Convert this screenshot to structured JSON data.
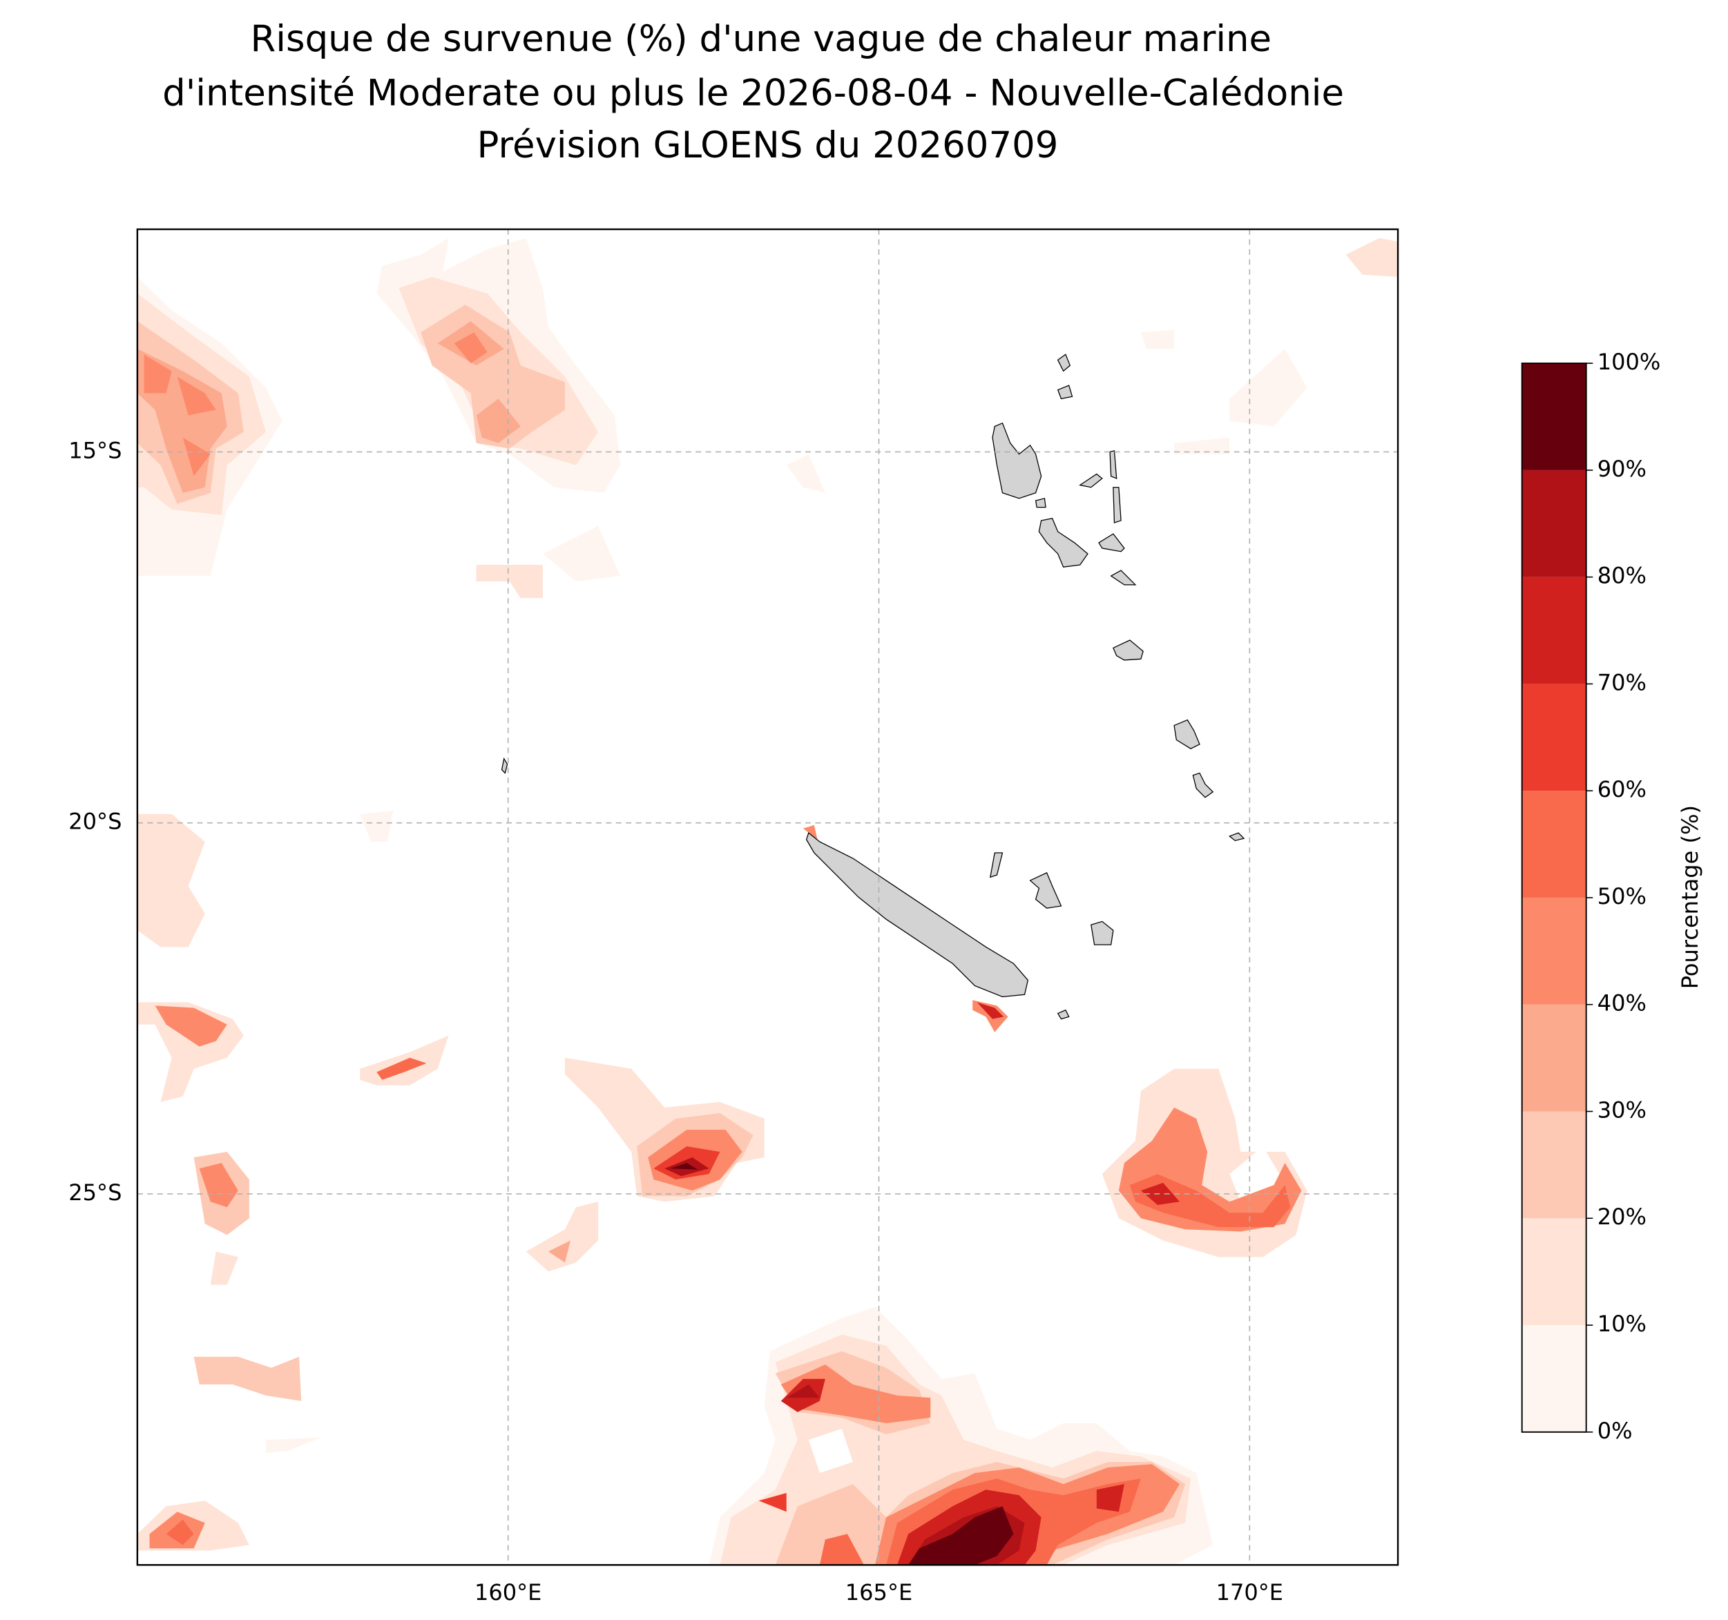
{
  "chart_data": {
    "type": "map",
    "title": [
      "Risque de survenue (%) d'une vague de chaleur marine",
      "d'intensité Moderate ou plus le 2026-08-04 - Nouvelle-Calédonie",
      "Prévision GLOENS du 20260709"
    ],
    "xlim": [
      155,
      172
    ],
    "ylim": [
      -30,
      -12
    ],
    "xticks": [
      {
        "value": 160,
        "label": "160°E"
      },
      {
        "value": 165,
        "label": "165°E"
      },
      {
        "value": 170,
        "label": "170°E"
      }
    ],
    "yticks": [
      {
        "value": -15,
        "label": "15°S"
      },
      {
        "value": -20,
        "label": "20°S"
      },
      {
        "value": -25,
        "label": "25°S"
      }
    ],
    "grid": true,
    "colorbar": {
      "label": "Pourcentage (%)",
      "ticks": [
        {
          "value": 0,
          "label": "0%"
        },
        {
          "value": 10,
          "label": "10%"
        },
        {
          "value": 20,
          "label": "20%"
        },
        {
          "value": 30,
          "label": "30%"
        },
        {
          "value": 40,
          "label": "40%"
        },
        {
          "value": 50,
          "label": "50%"
        },
        {
          "value": 60,
          "label": "60%"
        },
        {
          "value": 70,
          "label": "70%"
        },
        {
          "value": 80,
          "label": "80%"
        },
        {
          "value": 90,
          "label": "90%"
        },
        {
          "value": 100,
          "label": "100%"
        }
      ],
      "colors": [
        "#fff5f0",
        "#fee3d6",
        "#fdc9b4",
        "#fcaa8e",
        "#fc8a6a",
        "#f96a4d",
        "#eb3c2e",
        "#d0211e",
        "#b11218",
        "#67000d"
      ]
    }
  }
}
